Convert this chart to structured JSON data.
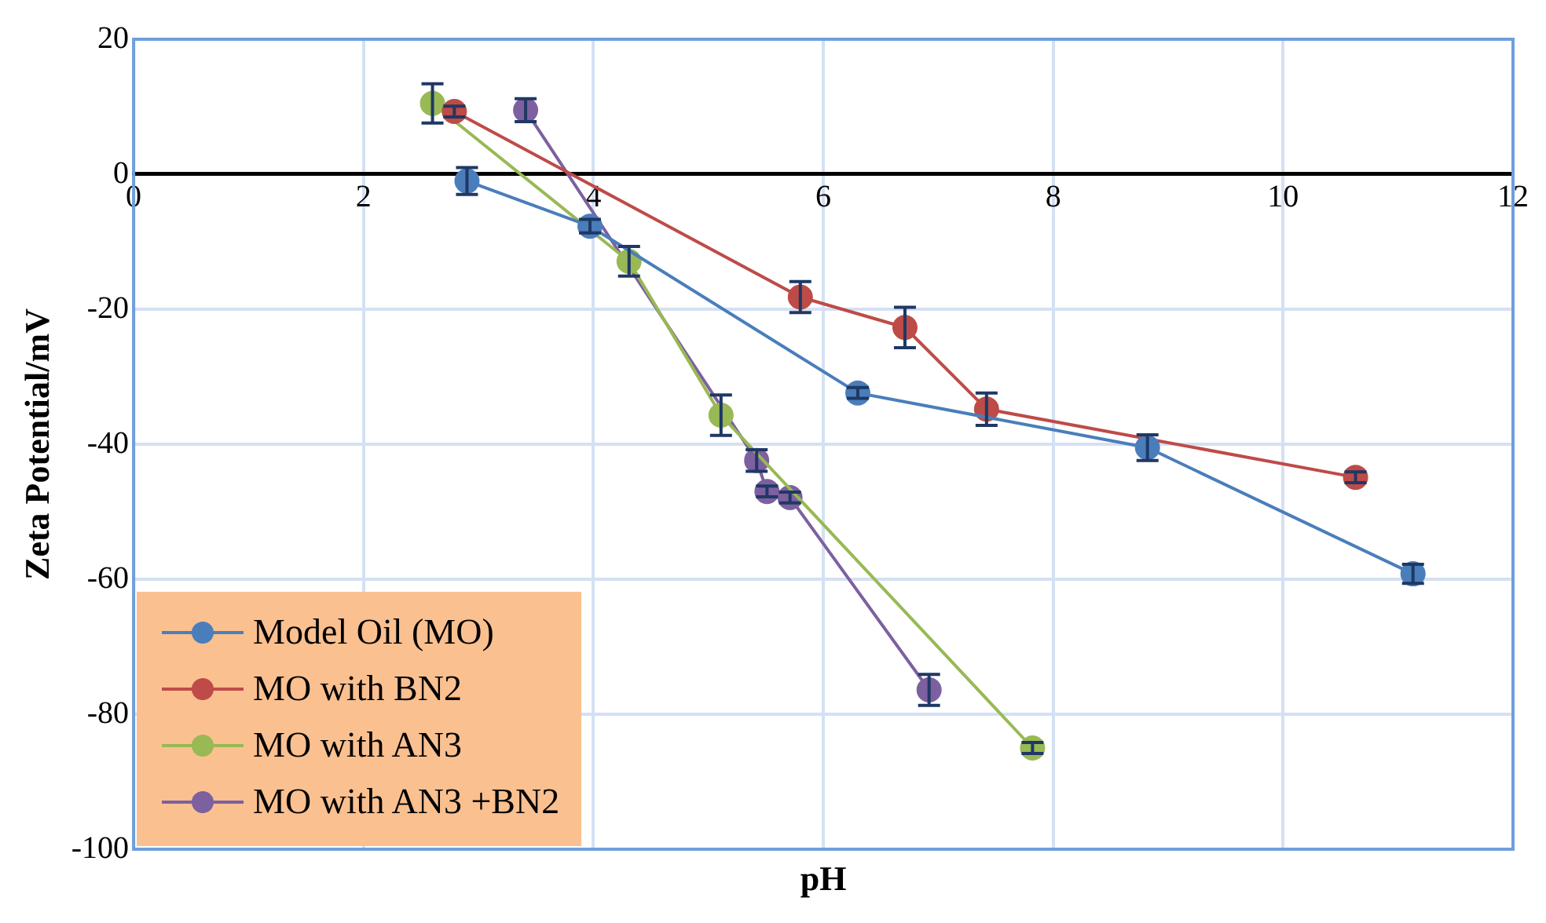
{
  "chart_data": {
    "type": "line",
    "xlabel": "pH",
    "ylabel": "Zeta Potential/mV",
    "xlim": [
      0,
      12
    ],
    "xticks": [
      0,
      2,
      4,
      6,
      8,
      10,
      12
    ],
    "ylim": [
      -100,
      20
    ],
    "yticks": [
      -100,
      -80,
      -60,
      -40,
      -20,
      0,
      20
    ],
    "grid": true,
    "legend": "bottom left",
    "marker": "circle",
    "line_style": "solid",
    "series": [
      {
        "name": "Model Oil (MO)",
        "color": "#4a7ebb",
        "x": [
          2.9,
          3.97,
          6.3,
          8.82,
          11.13
        ],
        "values": [
          -1.0,
          -7.7,
          -32.4,
          -40.5,
          -59.2
        ],
        "errors": [
          2,
          1,
          0.8,
          1.9,
          1.4
        ]
      },
      {
        "name": "MO with BN2",
        "color": "#be4b48",
        "x": [
          2.79,
          5.8,
          6.71,
          7.42,
          10.63
        ],
        "values": [
          9.3,
          -18.2,
          -22.7,
          -34.8,
          -44.9
        ],
        "errors": [
          0.8,
          2.3,
          3,
          2.4,
          0.8
        ]
      },
      {
        "name": "MO with AN3",
        "color": "#98b954",
        "x": [
          2.6,
          4.31,
          5.11,
          7.82
        ],
        "values": [
          10.5,
          -12.9,
          -35.7,
          -85
        ],
        "errors": [
          2.9,
          2.2,
          3,
          0.8
        ]
      },
      {
        "name": "MO with AN3 +BN2",
        "color": "#7d60a0",
        "x": [
          3.41,
          5.42,
          5.51,
          5.71,
          6.92
        ],
        "values": [
          9.5,
          -42.4,
          -47,
          -47.9,
          -76.4
        ],
        "errors": [
          1.7,
          1.6,
          0.8,
          0.8,
          2.3
        ]
      }
    ]
  }
}
